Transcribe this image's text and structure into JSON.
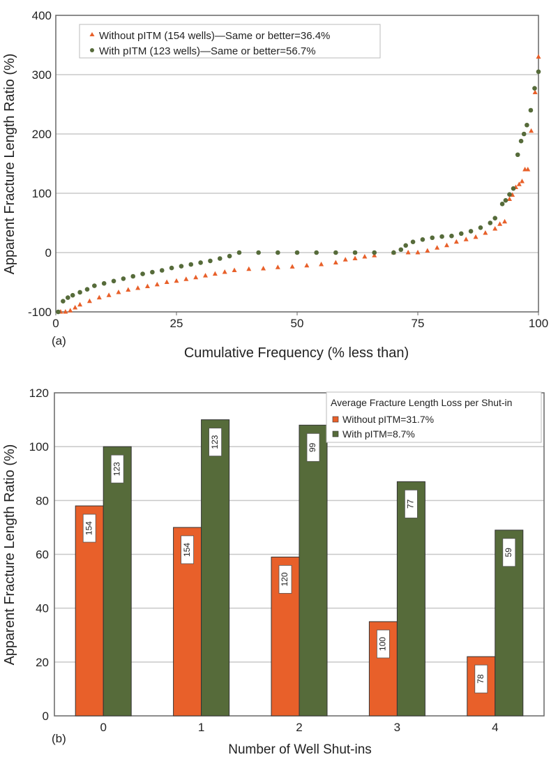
{
  "colors": {
    "without": "#e8602a",
    "with": "#566b3a",
    "grid": "#c8c8c8"
  },
  "chart_data": [
    {
      "type": "scatter",
      "panel_label": "(a)",
      "xlabel": "Cumulative Frequency (% less than)",
      "ylabel": "Apparent Fracture Length Ratio (%)",
      "xlim": [
        0,
        100
      ],
      "ylim": [
        -100,
        400
      ],
      "xticks": [
        "0",
        "25",
        "50",
        "75",
        "100"
      ],
      "yticks": [
        "-100",
        "0",
        "100",
        "200",
        "300",
        "400"
      ],
      "grid": true,
      "legend": "top-left",
      "series": [
        {
          "name": "Without pITM (154 wells)—Same or better=36.4%",
          "marker": "triangle",
          "points": [
            [
              1,
              -100
            ],
            [
              2,
              -100
            ],
            [
              3,
              -98
            ],
            [
              4,
              -93
            ],
            [
              5,
              -88
            ],
            [
              7,
              -82
            ],
            [
              9,
              -76
            ],
            [
              11,
              -72
            ],
            [
              13,
              -67
            ],
            [
              15,
              -63
            ],
            [
              17,
              -60
            ],
            [
              19,
              -57
            ],
            [
              21,
              -54
            ],
            [
              23,
              -50
            ],
            [
              25,
              -48
            ],
            [
              27,
              -45
            ],
            [
              29,
              -42
            ],
            [
              31,
              -39
            ],
            [
              33,
              -36
            ],
            [
              35,
              -33
            ],
            [
              37,
              -30
            ],
            [
              40,
              -28
            ],
            [
              43,
              -27
            ],
            [
              46,
              -25
            ],
            [
              49,
              -24
            ],
            [
              52,
              -22
            ],
            [
              55,
              -20
            ],
            [
              58,
              -17
            ],
            [
              60,
              -12
            ],
            [
              62,
              -10
            ],
            [
              64,
              -7
            ],
            [
              66,
              -5
            ],
            [
              70,
              0
            ],
            [
              73,
              0
            ],
            [
              75,
              0
            ],
            [
              77,
              3
            ],
            [
              79,
              8
            ],
            [
              81,
              12
            ],
            [
              83,
              18
            ],
            [
              85,
              22
            ],
            [
              87,
              26
            ],
            [
              89,
              33
            ],
            [
              91,
              40
            ],
            [
              92,
              48
            ],
            [
              93,
              52
            ],
            [
              94,
              90
            ],
            [
              94.6,
              97
            ],
            [
              95.3,
              110
            ],
            [
              96,
              115
            ],
            [
              96.6,
              120
            ],
            [
              97.2,
              140
            ],
            [
              97.8,
              140
            ],
            [
              98.5,
              205
            ],
            [
              99.3,
              270
            ],
            [
              100,
              330
            ]
          ]
        },
        {
          "name": "With pITM (123 wells)—Same or better=56.7%",
          "marker": "circle",
          "points": [
            [
              0.5,
              -100
            ],
            [
              1.5,
              -82
            ],
            [
              2.5,
              -76
            ],
            [
              3.5,
              -72
            ],
            [
              5,
              -67
            ],
            [
              6.5,
              -62
            ],
            [
              8,
              -56
            ],
            [
              10,
              -52
            ],
            [
              12,
              -48
            ],
            [
              14,
              -44
            ],
            [
              16,
              -40
            ],
            [
              18,
              -36
            ],
            [
              20,
              -33
            ],
            [
              22,
              -30
            ],
            [
              24,
              -26
            ],
            [
              26,
              -23
            ],
            [
              28,
              -20
            ],
            [
              30,
              -17
            ],
            [
              32,
              -14
            ],
            [
              34,
              -10
            ],
            [
              36,
              -6
            ],
            [
              38,
              0
            ],
            [
              42,
              0
            ],
            [
              46,
              0
            ],
            [
              50,
              0
            ],
            [
              54,
              0
            ],
            [
              58,
              0
            ],
            [
              62,
              0
            ],
            [
              66,
              0
            ],
            [
              70,
              0
            ],
            [
              71.5,
              5
            ],
            [
              72.5,
              12
            ],
            [
              74,
              18
            ],
            [
              76,
              22
            ],
            [
              78,
              25
            ],
            [
              80,
              27
            ],
            [
              82,
              28
            ],
            [
              84,
              32
            ],
            [
              86,
              36
            ],
            [
              88,
              42
            ],
            [
              90,
              50
            ],
            [
              91,
              58
            ],
            [
              92.5,
              82
            ],
            [
              93.2,
              88
            ],
            [
              94,
              98
            ],
            [
              94.8,
              108
            ],
            [
              95.7,
              165
            ],
            [
              96.4,
              188
            ],
            [
              97,
              200
            ],
            [
              97.6,
              215
            ],
            [
              98.4,
              240
            ],
            [
              99.2,
              277
            ],
            [
              100,
              305
            ]
          ]
        }
      ]
    },
    {
      "type": "bar",
      "panel_label": "(b)",
      "xlabel": "Number of Well Shut-ins",
      "ylabel": "Apparent Fracture Length Ratio (%)",
      "ylim": [
        0,
        120
      ],
      "yticks": [
        "0",
        "20",
        "40",
        "60",
        "80",
        "100",
        "120"
      ],
      "categories": [
        "0",
        "1",
        "2",
        "3",
        "4"
      ],
      "grid": true,
      "legend": "top-right",
      "legend_title": "Average Fracture Length Loss per Shut-in",
      "series": [
        {
          "name": "Without pITM=31.7%",
          "values": [
            78,
            70,
            59,
            35,
            22
          ],
          "labels": [
            "154",
            "154",
            "120",
            "100",
            "78"
          ]
        },
        {
          "name": "With pITM=8.7%",
          "values": [
            100,
            110,
            108,
            87,
            69
          ],
          "labels": [
            "123",
            "123",
            "99",
            "77",
            "59"
          ]
        }
      ]
    }
  ]
}
